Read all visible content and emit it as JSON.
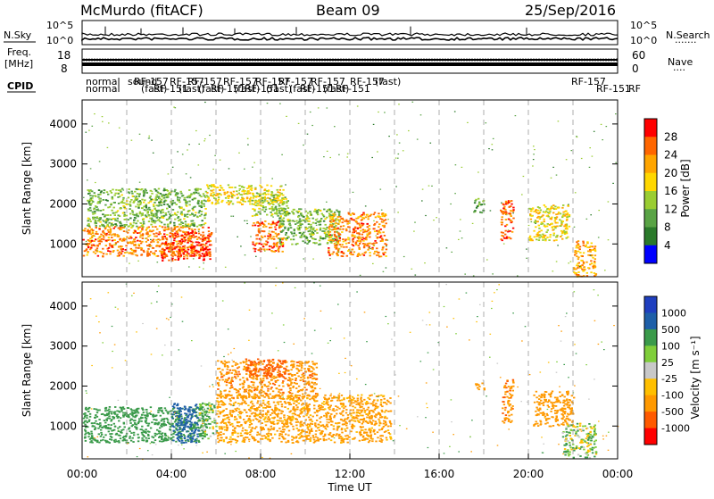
{
  "header": {
    "station": "McMurdo (fitACF)",
    "beam": "Beam 09",
    "date": "25/Sep/2016"
  },
  "noise_panel": {
    "left_label": "N.Sky",
    "right_label": "N.Search",
    "right_sub": "·······",
    "ticks_left": [
      "10^5",
      "10^0"
    ],
    "ticks_right": [
      "10^5",
      "10^0"
    ]
  },
  "freq_panel": {
    "left_label_1": "Freq.",
    "left_label_2": "[MHz]",
    "right_label": "Nave",
    "right_sub": "····",
    "ticks_left": [
      "18",
      "8"
    ],
    "ticks_right": [
      "60",
      "0"
    ]
  },
  "cpid": {
    "label": "CPID",
    "entries": [
      "normal",
      "normal",
      "sound",
      "RF-157",
      "(fast)",
      "RF-151",
      "RF-157",
      "(fast)",
      "RF-157",
      "(fast)",
      "RF-151",
      "RF-157",
      "(fast)",
      "RF-151",
      "RF-157",
      "(fast)",
      "RF-157",
      "(fast)",
      "RF-151",
      "RF-157",
      "(fast)",
      "RF-151",
      "RF-157",
      "(fast)",
      "RF-157",
      "RF-151",
      "RF"
    ]
  },
  "time_axis": {
    "label": "Time UT",
    "ticks": [
      "00:00",
      "04:00",
      "08:00",
      "12:00",
      "16:00",
      "20:00",
      "00:00"
    ]
  },
  "colors": {
    "power_scale": [
      "#0000ff",
      "#2b7a2b",
      "#59a345",
      "#9acd32",
      "#ffd700",
      "#ffa500",
      "#ff6600",
      "#ff0000"
    ],
    "velocity_scale": [
      "#ff0000",
      "#ff5a00",
      "#ff9900",
      "#ffbf00",
      "#c8c8c8",
      "#7fce3a",
      "#3a9a4a",
      "#1e5fa8",
      "#1f3fbf"
    ]
  },
  "chart_data": [
    {
      "type": "heatmap",
      "title": "",
      "xlabel": "Time UT",
      "ylabel": "Slant Range [km]",
      "xlim_hours": [
        0,
        24
      ],
      "ylim": [
        180,
        4600
      ],
      "yticks": [
        1000,
        2000,
        3000,
        4000
      ],
      "colorbar": {
        "label": "Power [dB]",
        "range": [
          0,
          32
        ],
        "ticks": [
          "4",
          "8",
          "12",
          "16",
          "20",
          "24",
          "28"
        ]
      },
      "grid": "vertical dashed every 2 h",
      "regions": [
        {
          "t_start": 0.0,
          "t_end": 5.8,
          "r_min": 700,
          "r_max": 1450,
          "power": 24
        },
        {
          "t_start": 0.2,
          "t_end": 5.5,
          "r_min": 1450,
          "r_max": 2400,
          "power": 12
        },
        {
          "t_start": 3.5,
          "t_end": 5.7,
          "r_min": 600,
          "r_max": 1300,
          "power": 28
        },
        {
          "t_start": 5.5,
          "t_end": 9.0,
          "r_min": 2000,
          "r_max": 2500,
          "power": 18
        },
        {
          "t_start": 7.5,
          "t_end": 9.2,
          "r_min": 1700,
          "r_max": 2300,
          "power": 14
        },
        {
          "t_start": 7.6,
          "t_end": 9.0,
          "r_min": 800,
          "r_max": 1600,
          "power": 26
        },
        {
          "t_start": 8.8,
          "t_end": 11.5,
          "r_min": 1000,
          "r_max": 1900,
          "power": 12
        },
        {
          "t_start": 11.0,
          "t_end": 13.6,
          "r_min": 700,
          "r_max": 1800,
          "power": 24
        },
        {
          "t_start": 17.5,
          "t_end": 18.0,
          "r_min": 1800,
          "r_max": 2150,
          "power": 10
        },
        {
          "t_start": 18.7,
          "t_end": 19.3,
          "r_min": 1100,
          "r_max": 2100,
          "power": 26
        },
        {
          "t_start": 20.0,
          "t_end": 21.8,
          "r_min": 1100,
          "r_max": 2000,
          "power": 18
        },
        {
          "t_start": 22.0,
          "t_end": 23.0,
          "r_min": 200,
          "r_max": 1100,
          "power": 22
        }
      ]
    },
    {
      "type": "heatmap",
      "title": "",
      "xlabel": "Time UT",
      "ylabel": "Slant Range [km]",
      "xlim_hours": [
        0,
        24
      ],
      "ylim": [
        180,
        4600
      ],
      "yticks": [
        1000,
        2000,
        3000,
        4000
      ],
      "colorbar": {
        "label": "Velocity [m s⁻¹]",
        "ticks": [
          "1000",
          "500",
          "100",
          "25",
          "-25",
          "-100",
          "-500",
          "-1000"
        ]
      },
      "grid": "vertical dashed every 2 h",
      "regions": [
        {
          "t_start": 0.0,
          "t_end": 5.6,
          "r_min": 600,
          "r_max": 1500,
          "velocity": 300
        },
        {
          "t_start": 4.0,
          "t_end": 5.2,
          "r_min": 600,
          "r_max": 1600,
          "velocity": 800
        },
        {
          "t_start": 5.2,
          "t_end": 6.0,
          "r_min": 700,
          "r_max": 1600,
          "velocity": 80
        },
        {
          "t_start": 6.0,
          "t_end": 10.5,
          "r_min": 1700,
          "r_max": 2650,
          "velocity": -400
        },
        {
          "t_start": 7.3,
          "t_end": 9.1,
          "r_min": 2250,
          "r_max": 2700,
          "velocity": -800
        },
        {
          "t_start": 6.0,
          "t_end": 13.8,
          "r_min": 600,
          "r_max": 1800,
          "velocity": -200
        },
        {
          "t_start": 17.6,
          "t_end": 18.0,
          "r_min": 1900,
          "r_max": 2100,
          "velocity": -300
        },
        {
          "t_start": 18.8,
          "t_end": 19.3,
          "r_min": 1100,
          "r_max": 2200,
          "velocity": -450
        },
        {
          "t_start": 20.2,
          "t_end": 22.0,
          "r_min": 1000,
          "r_max": 1900,
          "velocity": -300
        },
        {
          "t_start": 21.5,
          "t_end": 23.0,
          "r_min": 200,
          "r_max": 1100,
          "velocity": 60
        }
      ]
    }
  ]
}
